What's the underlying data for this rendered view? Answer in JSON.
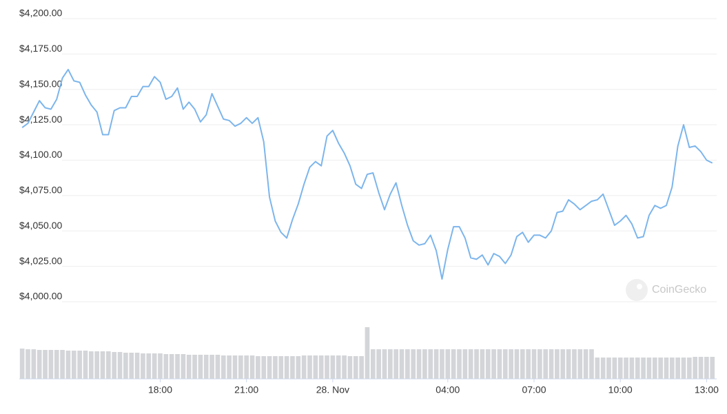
{
  "chart_data": {
    "type": "line",
    "x": [
      -10.8,
      -10.6,
      -10.4,
      -10.2,
      -10.0,
      -9.8,
      -9.6,
      -9.4,
      -9.2,
      -9.0,
      -8.8,
      -8.6,
      -8.4,
      -8.2,
      -8.0,
      -7.8,
      -7.6,
      -7.4,
      -7.2,
      -7.0,
      -6.8,
      -6.6,
      -6.4,
      -6.2,
      -6.0,
      -5.8,
      -5.6,
      -5.4,
      -5.2,
      -5.0,
      -4.8,
      -4.6,
      -4.4,
      -4.2,
      -4.0,
      -3.8,
      -3.6,
      -3.4,
      -3.2,
      -3.0,
      -2.8,
      -2.6,
      -2.4,
      -2.2,
      -2.0,
      -1.8,
      -1.6,
      -1.4,
      -1.2,
      -1.0,
      -0.8,
      -0.6,
      -0.4,
      -0.2,
      0.0,
      0.2,
      0.4,
      0.6,
      0.8,
      1.0,
      1.2,
      1.4,
      1.6,
      1.8,
      2.0,
      2.2,
      2.4,
      2.6,
      2.8,
      3.0,
      3.2,
      3.4,
      3.6,
      3.8,
      4.0,
      4.2,
      4.4,
      4.6,
      4.8,
      5.0,
      5.2,
      5.4,
      5.6,
      5.8,
      6.0,
      6.2,
      6.4,
      6.6,
      6.8,
      7.0,
      7.2,
      7.4,
      7.6,
      7.8,
      8.0,
      8.2,
      8.4,
      8.6,
      8.8,
      9.0,
      9.2,
      9.4,
      9.6,
      9.8,
      10.0,
      10.2,
      10.4,
      10.6,
      10.8,
      11.0,
      11.2,
      11.4,
      11.6,
      11.8,
      12.0,
      12.2,
      12.4,
      12.6,
      12.8,
      13.0,
      13.2
    ],
    "values": [
      4123,
      4126,
      4134,
      4142,
      4137,
      4136,
      4143,
      4158,
      4164,
      4156,
      4155,
      4146,
      4139,
      4134,
      4118,
      4118,
      4135,
      4137,
      4137,
      4145,
      4145,
      4152,
      4152,
      4159,
      4155,
      4143,
      4145,
      4151,
      4136,
      4141,
      4136,
      4127,
      4132,
      4147,
      4138,
      4129,
      4128,
      4124,
      4126,
      4130,
      4126,
      4130,
      4113,
      4074,
      4057,
      4049,
      4045,
      4058,
      4069,
      4083,
      4095,
      4099,
      4096,
      4117,
      4121,
      4112,
      4105,
      4096,
      4083,
      4080,
      4090,
      4091,
      4077,
      4065,
      4076,
      4084,
      4068,
      4054,
      4043,
      4040,
      4041,
      4047,
      4036,
      4016,
      4037,
      4053,
      4053,
      4045,
      4031,
      4030,
      4033,
      4026,
      4034,
      4032,
      4027,
      4033,
      4046,
      4049,
      4042,
      4047,
      4047,
      4045,
      4050,
      4063,
      4064,
      4072,
      4069,
      4065,
      4068,
      4071,
      4072,
      4076,
      4065,
      4054,
      4057,
      4061,
      4055,
      4045,
      4046,
      4061,
      4068,
      4066,
      4068,
      4081,
      4110,
      4125,
      4109,
      4110,
      4106,
      4100,
      4098
    ],
    "color": "#7cb5ec",
    "volume": {
      "color": "#d3d5d8",
      "values": [
        44,
        43,
        43,
        42,
        42,
        42,
        42,
        42,
        41,
        41,
        41,
        41,
        40,
        40,
        40,
        40,
        39,
        39,
        38,
        38,
        38,
        37,
        37,
        37,
        37,
        36,
        36,
        36,
        36,
        35,
        35,
        35,
        35,
        35,
        35,
        34,
        34,
        34,
        34,
        34,
        34,
        33,
        33,
        33,
        33,
        33,
        33,
        33,
        33,
        34,
        34,
        34,
        34,
        34,
        34,
        34,
        34,
        33,
        33,
        33,
        75,
        43,
        43,
        43,
        43,
        43,
        43,
        43,
        43,
        43,
        43,
        43,
        43,
        43,
        43,
        43,
        43,
        43,
        43,
        43,
        43,
        43,
        43,
        43,
        43,
        43,
        43,
        43,
        43,
        43,
        43,
        43,
        43,
        43,
        43,
        43,
        43,
        43,
        43,
        43,
        31,
        31,
        31,
        31,
        31,
        31,
        31,
        31,
        31,
        31,
        31,
        31,
        31,
        31,
        31,
        31,
        31,
        32,
        32,
        32,
        32
      ]
    },
    "xlim": [
      -10.9,
      13.35
    ],
    "xticks": [
      {
        "value": -6,
        "label": "18:00"
      },
      {
        "value": -3,
        "label": "21:00"
      },
      {
        "value": 0,
        "label": "28. Nov"
      },
      {
        "value": 4,
        "label": "04:00"
      },
      {
        "value": 7,
        "label": "07:00"
      },
      {
        "value": 10,
        "label": "10:00"
      },
      {
        "value": 13,
        "label": "13:00"
      }
    ],
    "ylim": [
      4000,
      4200
    ],
    "yticks": [
      {
        "value": 4000,
        "label": "$4,000.00"
      },
      {
        "value": 4025,
        "label": "$4,025.00"
      },
      {
        "value": 4050,
        "label": "$4,050.00"
      },
      {
        "value": 4075,
        "label": "$4,075.00"
      },
      {
        "value": 4100,
        "label": "$4,100.00"
      },
      {
        "value": 4125,
        "label": "$4,125.00"
      },
      {
        "value": 4150,
        "label": "$4,150.00"
      },
      {
        "value": 4175,
        "label": "$4,175.00"
      },
      {
        "value": 4200,
        "label": "$4,200.00"
      }
    ],
    "grid": true,
    "watermark": "CoinGecko"
  }
}
